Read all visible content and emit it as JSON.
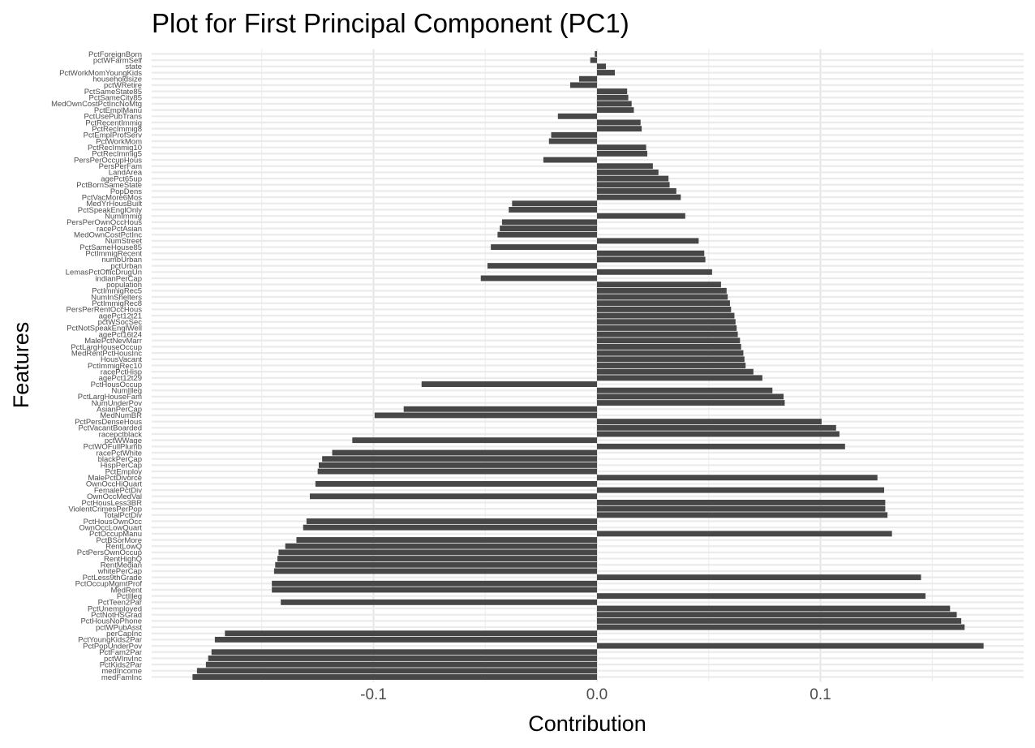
{
  "chart_data": {
    "type": "bar",
    "orientation": "horizontal",
    "title": "Plot for First Principal Component (PC1)",
    "xlabel": "Contribution",
    "ylabel": "Features",
    "xlim": [
      -0.19,
      0.19
    ],
    "x_ticks": [
      -0.1,
      0.0,
      0.1
    ],
    "x_tick_labels": [
      "-0.1",
      "0.0",
      "0.1"
    ],
    "grid": true,
    "bar_color": "#474747",
    "categories": [
      "PctForeignBorn",
      "pctWFarmSelf",
      "state",
      "PctWorkMomYoungKids",
      "householdsize",
      "pctWRetire",
      "PctSameState85",
      "PctSameCity85",
      "MedOwnCostPctIncNoMtg",
      "PctEmplManu",
      "PctUsePubTrans",
      "PctRecentImmig",
      "PctRecImmig8",
      "PctEmplProfServ",
      "PctWorkMom",
      "PctRecImmig10",
      "PctRecImmig5",
      "PersPerOccupHous",
      "PersPerFam",
      "LandArea",
      "agePct65up",
      "PctBornSameState",
      "PopDens",
      "PctVacMore6Mos",
      "MedYrHousBuilt",
      "PctSpeakEnglOnly",
      "NumImmig",
      "PersPerOwnOccHous",
      "racePctAsian",
      "MedOwnCostPctInc",
      "NumStreet",
      "PctSameHouse85",
      "PctImmigRecent",
      "numbUrban",
      "pctUrban",
      "LemasPctOfficDrugUn",
      "indianPerCap",
      "population",
      "PctImmigRec5",
      "NumInShelters",
      "PctImmigRec8",
      "PersPerRentOccHous",
      "agePct12t21",
      "pctWSocSec",
      "PctNotSpeakEnglWell",
      "agePct16t24",
      "MalePctNevMarr",
      "PctLargHouseOccup",
      "MedRentPctHousInc",
      "HousVacant",
      "PctImmigRec10",
      "racePctHisp",
      "agePct12t29",
      "PctHousOccup",
      "NumIlleg",
      "PctLargHouseFam",
      "NumUnderPov",
      "AsianPerCap",
      "MedNumBR",
      "PctPersDenseHous",
      "PctVacantBoarded",
      "racepctblack",
      "pctWWage",
      "PctWOFullPlumb",
      "racePctWhite",
      "blackPerCap",
      "HispPerCap",
      "PctEmploy",
      "MalePctDivorce",
      "OwnOccHiQuart",
      "FemalePctDiv",
      "OwnOccMedVal",
      "PctHousLess3BR",
      "ViolentCrimesPerPop",
      "TotalPctDiv",
      "PctHousOwnOcc",
      "OwnOccLowQuart",
      "PctOccupManu",
      "PctBSorMore",
      "RentLowQ",
      "PctPersOwnOccup",
      "RentHighQ",
      "RentMedian",
      "whitePerCap",
      "PctLess9thGrade",
      "PctOccupMgmtProf",
      "MedRent",
      "PctIlleg",
      "PctTeen2Par",
      "PctUnemployed",
      "PctNotHSGrad",
      "PctHousNoPhone",
      "pctWPubAsst",
      "perCapInc",
      "PctYoungKids2Par",
      "PctPopUnderPov",
      "PctFam2Par",
      "pctWInvInc",
      "PctKids2Par",
      "medIncome",
      "medFamInc"
    ],
    "values": [
      -0.001,
      -0.003,
      0.004,
      0.008,
      -0.008,
      -0.012,
      0.0135,
      0.014,
      0.0155,
      0.0165,
      -0.0175,
      0.0195,
      0.02,
      -0.0205,
      -0.0215,
      0.022,
      0.0225,
      -0.024,
      0.025,
      0.0275,
      0.032,
      0.0325,
      0.0355,
      0.0375,
      -0.038,
      -0.0395,
      0.0395,
      -0.0425,
      -0.0435,
      -0.0445,
      0.0455,
      -0.0475,
      0.048,
      0.0485,
      -0.049,
      0.0515,
      -0.052,
      0.0555,
      0.058,
      0.0585,
      0.0595,
      0.06,
      0.0615,
      0.062,
      0.0625,
      0.063,
      0.064,
      0.0645,
      0.0655,
      0.066,
      0.0665,
      0.07,
      0.074,
      -0.0785,
      0.0785,
      0.0835,
      0.084,
      -0.0865,
      -0.0995,
      0.1005,
      0.107,
      0.1085,
      -0.1095,
      0.111,
      -0.1185,
      -0.123,
      -0.1245,
      -0.125,
      0.1255,
      -0.126,
      0.1285,
      -0.1285,
      0.129,
      0.129,
      0.13,
      -0.13,
      -0.1315,
      0.132,
      -0.1345,
      -0.1395,
      -0.1425,
      -0.143,
      -0.144,
      -0.1445,
      0.145,
      -0.1455,
      -0.1455,
      0.147,
      -0.1415,
      0.158,
      0.161,
      0.163,
      0.1645,
      -0.1665,
      -0.171,
      0.173,
      -0.1725,
      -0.174,
      -0.175,
      -0.179,
      -0.181
    ]
  }
}
